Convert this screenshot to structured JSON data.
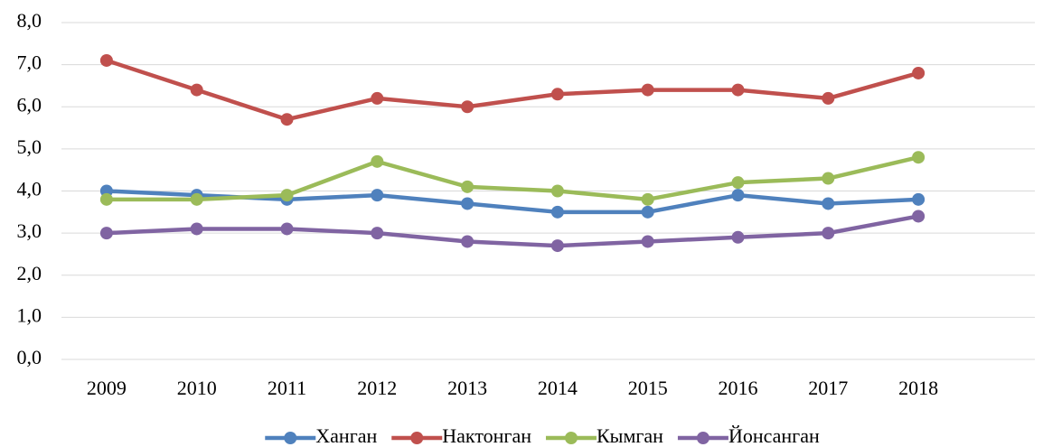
{
  "chart_data": {
    "type": "line",
    "categories": [
      "2009",
      "2010",
      "2011",
      "2012",
      "2013",
      "2014",
      "2015",
      "2016",
      "2017",
      "2018"
    ],
    "series": [
      {
        "name": "Ханган",
        "color": "#4f81bd",
        "values": [
          4.0,
          3.9,
          3.8,
          3.9,
          3.7,
          3.5,
          3.5,
          3.9,
          3.7,
          3.8
        ]
      },
      {
        "name": "Нактонган",
        "color": "#c0504d",
        "values": [
          7.1,
          6.4,
          5.7,
          6.2,
          6.0,
          6.3,
          6.4,
          6.4,
          6.2,
          6.8
        ]
      },
      {
        "name": "Кымган",
        "color": "#9bbb59",
        "values": [
          3.8,
          3.8,
          3.9,
          4.7,
          4.1,
          4.0,
          3.8,
          4.2,
          4.3,
          4.8
        ]
      },
      {
        "name": "Йонсанган",
        "color": "#8064a2",
        "values": [
          3.0,
          3.1,
          3.1,
          3.0,
          2.8,
          2.7,
          2.8,
          2.9,
          3.0,
          3.4
        ]
      }
    ],
    "ylim": [
      0,
      8
    ],
    "yticks": [
      {
        "value": 0,
        "label": "0,0"
      },
      {
        "value": 1,
        "label": "1,0"
      },
      {
        "value": 2,
        "label": "2,0"
      },
      {
        "value": 3,
        "label": "3,0"
      },
      {
        "value": 4,
        "label": "4,0"
      },
      {
        "value": 5,
        "label": "5,0"
      },
      {
        "value": 6,
        "label": "6,0"
      },
      {
        "value": 7,
        "label": "7,0"
      },
      {
        "value": 8,
        "label": "8,0"
      }
    ],
    "grid": true,
    "legend": "bottom"
  }
}
